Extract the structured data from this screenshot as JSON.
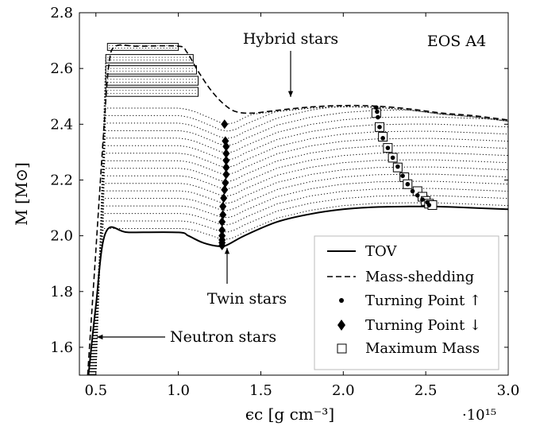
{
  "chart_data": {
    "type": "line",
    "title": "",
    "xlabel": "ϵc [g cm⁻³]",
    "x_scale_label": "·10¹⁵",
    "ylabel": "M [M⊙]",
    "xlim": [
      0.4,
      3.0
    ],
    "ylim": [
      1.5,
      2.8
    ],
    "x_ticks": [
      0.5,
      1.0,
      1.5,
      2.0,
      2.5,
      3.0
    ],
    "x_tick_labels": [
      "0.5",
      "1.0",
      "1.5",
      "2.0",
      "2.5",
      "3.0"
    ],
    "y_ticks": [
      1.6,
      1.8,
      2.0,
      2.2,
      2.4,
      2.6,
      2.8
    ],
    "y_tick_labels": [
      "1.6",
      "1.8",
      "2.0",
      "2.2",
      "2.4",
      "2.6",
      "2.8"
    ],
    "annotations": [
      {
        "text": "EOS A4"
      },
      {
        "text": "Hybrid stars"
      },
      {
        "text": "Twin stars"
      },
      {
        "text": "Neutron stars"
      }
    ],
    "legend": {
      "position": "bottom-right",
      "entries": [
        {
          "label": "TOV",
          "marker": "solid-line"
        },
        {
          "label": "Mass-shedding",
          "marker": "dashed-line"
        },
        {
          "label": "Turning Point ↑",
          "marker": "dot"
        },
        {
          "label": "Turning Point ↓",
          "marker": "diamond"
        },
        {
          "label": "Maximum Mass",
          "marker": "square"
        }
      ]
    },
    "series": [
      {
        "name": "TOV",
        "style": "solid",
        "x": [
          0.455,
          0.5,
          0.56,
          0.7,
          1.0,
          1.06,
          1.15,
          1.25,
          1.3,
          1.4,
          1.6,
          1.8,
          2.0,
          2.2,
          2.4,
          2.55,
          2.7,
          3.0
        ],
        "y": [
          1.5,
          1.75,
          2.012,
          2.012,
          2.012,
          2.0,
          1.975,
          1.962,
          1.968,
          2.0,
          2.05,
          2.078,
          2.095,
          2.103,
          2.105,
          2.105,
          2.102,
          2.095
        ]
      },
      {
        "name": "Mass-shedding",
        "style": "dashed",
        "x": [
          0.45,
          0.5,
          0.55,
          0.58,
          0.62,
          0.75,
          1.0,
          1.05,
          1.12,
          1.2,
          1.28,
          1.35,
          1.45,
          1.6,
          1.8,
          2.0,
          2.2,
          2.4,
          2.6,
          2.8,
          3.0
        ],
        "y": [
          1.5,
          1.95,
          2.4,
          2.62,
          2.68,
          2.68,
          2.68,
          2.66,
          2.59,
          2.52,
          2.47,
          2.445,
          2.44,
          2.45,
          2.462,
          2.467,
          2.465,
          2.455,
          2.44,
          2.43,
          2.415
        ]
      }
    ],
    "bands": {
      "description": "dotted uniformly rotating sequences between TOV and mass-shedding",
      "plateau_masses": [
        2.026,
        2.053,
        2.08,
        2.107,
        2.134,
        2.161,
        2.188,
        2.215,
        2.242,
        2.269,
        2.296,
        2.323,
        2.35,
        2.377,
        2.404,
        2.431,
        2.458,
        2.485,
        2.512,
        2.539,
        2.566,
        2.593,
        2.62,
        2.647
      ]
    },
    "hatched_boxes": [
      {
        "x": [
          0.56,
          1.12
        ],
        "y": [
          2.5,
          2.532
        ]
      },
      {
        "x": [
          0.56,
          1.12
        ],
        "y": [
          2.54,
          2.572
        ]
      },
      {
        "x": [
          0.56,
          1.11
        ],
        "y": [
          2.58,
          2.61
        ]
      },
      {
        "x": [
          0.56,
          1.09
        ],
        "y": [
          2.62,
          2.65
        ]
      },
      {
        "x": [
          0.57,
          1.0
        ],
        "y": [
          2.665,
          2.69
        ]
      }
    ],
    "turning_point_up": {
      "x": [
        2.2,
        2.205,
        2.21,
        2.22,
        2.24,
        2.27,
        2.3,
        2.33,
        2.36,
        2.39,
        2.42,
        2.45,
        2.48,
        2.51,
        2.52
      ],
      "y": [
        2.46,
        2.445,
        2.425,
        2.39,
        2.35,
        2.315,
        2.28,
        2.248,
        2.215,
        2.185,
        2.16,
        2.145,
        2.13,
        2.12,
        2.11
      ]
    },
    "turning_point_down": {
      "x": [
        1.28,
        1.285,
        1.29,
        1.29,
        1.29,
        1.29,
        1.29,
        1.285,
        1.28,
        1.275,
        1.27,
        1.27,
        1.265,
        1.265,
        1.265
      ],
      "y": [
        2.4,
        2.34,
        2.32,
        2.295,
        2.27,
        2.245,
        2.22,
        2.19,
        2.165,
        2.135,
        2.105,
        2.075,
        2.05,
        2.02,
        2.0
      ]
    },
    "turning_point_down_extra": {
      "x": [
        1.265,
        1.265,
        1.265
      ],
      "y": [
        1.985,
        1.975,
        1.965
      ]
    },
    "maximum_mass": {
      "x": [
        2.2,
        2.22,
        2.24,
        2.27,
        2.3,
        2.33,
        2.37,
        2.39,
        2.45,
        2.48,
        2.5,
        2.52,
        2.54
      ],
      "y": [
        2.44,
        2.39,
        2.355,
        2.315,
        2.28,
        2.245,
        2.21,
        2.185,
        2.16,
        2.14,
        2.125,
        2.115,
        2.11
      ]
    }
  }
}
